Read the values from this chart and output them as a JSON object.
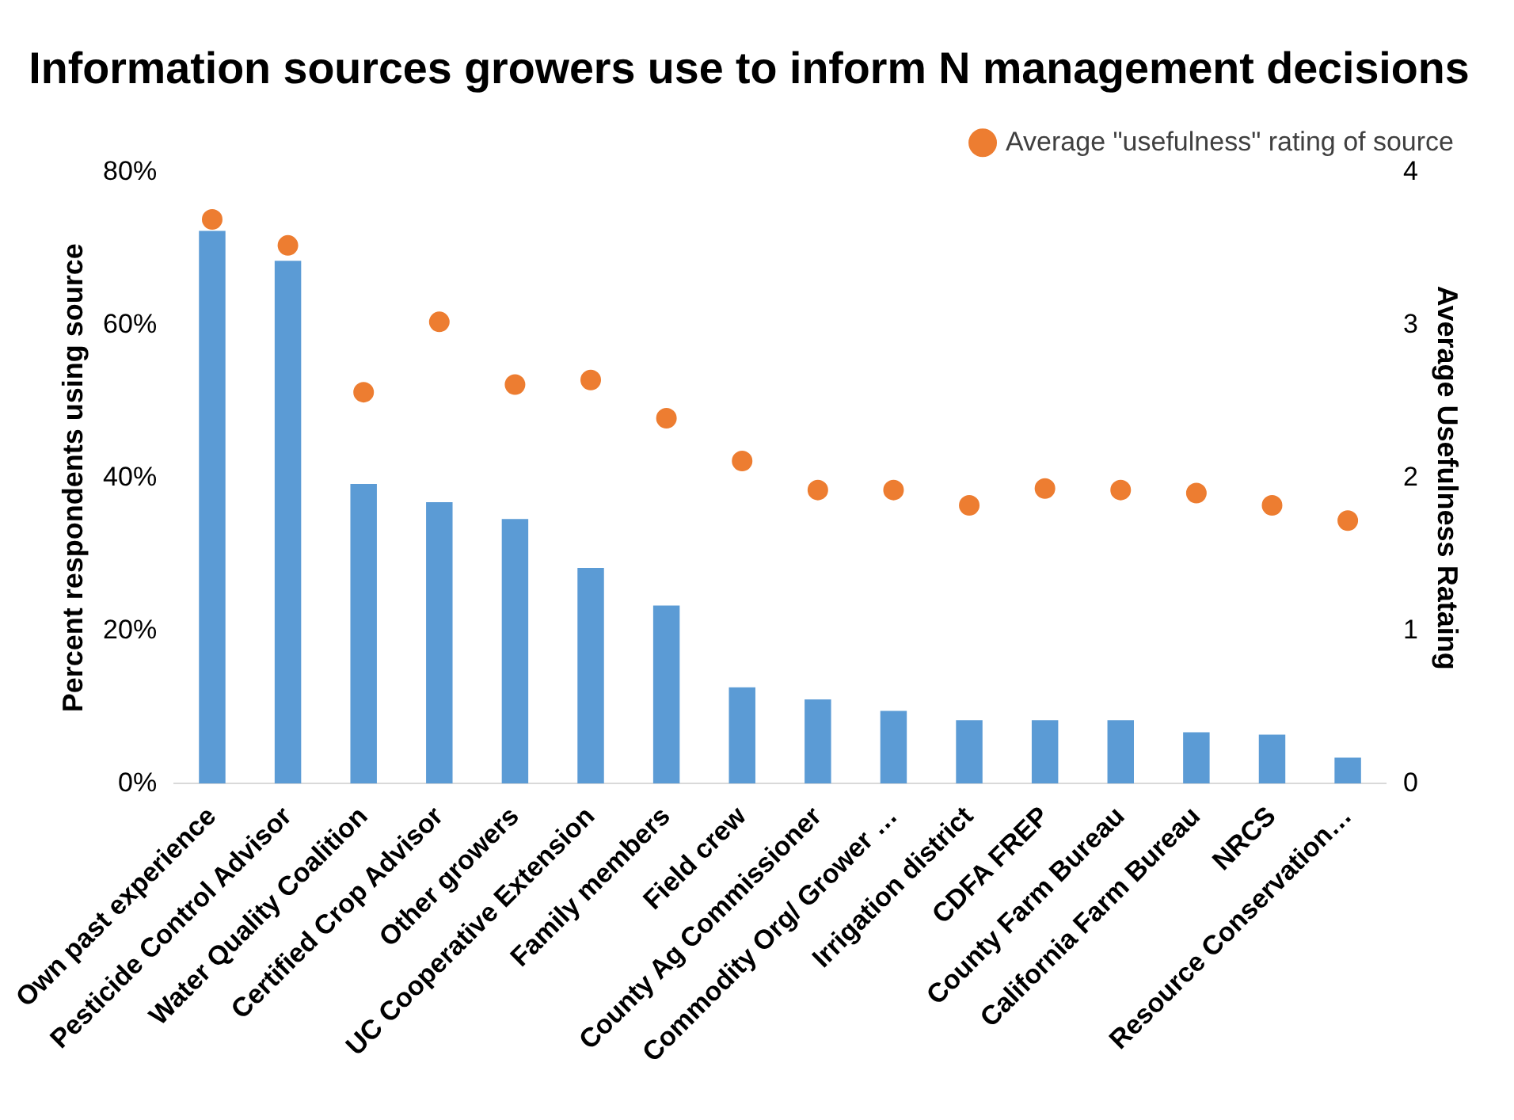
{
  "chart_data": {
    "type": "bar",
    "title": "Information sources growers use to inform N management decisions",
    "ylabel": "Percent respondents using source",
    "y2label": "Average Usefulness Rataing",
    "categories": [
      "Own past experience",
      "Pesticide Control Advisor",
      "Water Quality Coalition",
      "Certified Crop Advisor",
      "Other growers",
      "UC Cooperative Extension",
      "Family members",
      "Field crew",
      "County Ag Commissioner",
      "Commodity Org/ Grower …",
      "Irrigation district",
      "CDFA FREP",
      "County Farm Bureau",
      "California Farm Bureau",
      "NRCS",
      "Resource Conservation…"
    ],
    "series": [
      {
        "color": "#5b9bd5",
        "values": [
          72.3,
          68.4,
          39.2,
          36.8,
          34.6,
          28.2,
          23.3,
          12.6,
          11.0,
          9.5,
          8.3,
          8.3,
          8.3,
          6.7,
          6.4,
          3.4
        ]
      },
      {
        "type": "scatter",
        "axis": "y2",
        "name": "Average \"usefulness\" rating of source",
        "color": "#ed7d31",
        "values": [
          3.69,
          3.52,
          2.56,
          3.02,
          2.61,
          2.64,
          2.39,
          2.11,
          1.92,
          1.92,
          1.82,
          1.93,
          1.92,
          1.9,
          1.82,
          1.72
        ]
      }
    ],
    "ylim": [
      0,
      80
    ],
    "yticks": [
      {
        "value": 0,
        "label": "0%"
      },
      {
        "value": 20,
        "label": "20%"
      },
      {
        "value": 40,
        "label": "40%"
      },
      {
        "value": 60,
        "label": "60%"
      },
      {
        "value": 80,
        "label": "80%"
      }
    ],
    "y2lim": [
      0,
      4
    ],
    "y2ticks": [
      0,
      1,
      2,
      3,
      4
    ],
    "marker": "circle",
    "grid": false,
    "legend": "top right"
  }
}
